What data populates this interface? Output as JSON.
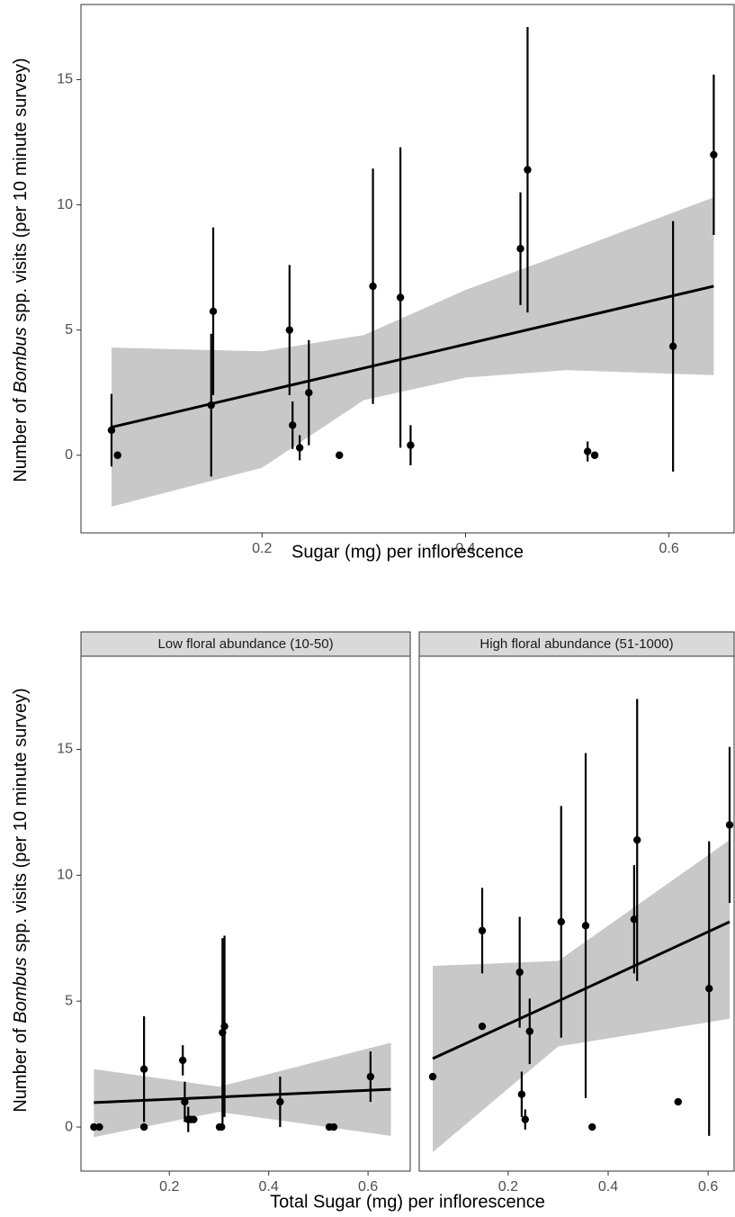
{
  "chart_data": [
    {
      "type": "scatter",
      "x_label": "Sugar (mg) per inflorescence",
      "y_label": [
        "Number of ",
        "Bombus",
        " spp. visits (per 10 minute survey)"
      ],
      "xlim": [
        0.022,
        0.664
      ],
      "ylim": [
        -3.1,
        18.0
      ],
      "xticks": [
        0.2,
        0.4,
        0.6
      ],
      "yticks": [
        0,
        5,
        10,
        15
      ],
      "color": "#000000",
      "band_color": "#c8c8c8",
      "x": [
        0.052,
        0.058,
        0.15,
        0.152,
        0.227,
        0.23,
        0.237,
        0.246,
        0.276,
        0.309,
        0.336,
        0.346,
        0.454,
        0.461,
        0.52,
        0.527,
        0.604,
        0.644
      ],
      "values": [
        1.0,
        0,
        2.0,
        5.75,
        5.0,
        1.2,
        0.3,
        2.5,
        0,
        6.75,
        6.3,
        0.4,
        8.25,
        11.4,
        0.15,
        0,
        4.35,
        12.0
      ],
      "errors": [
        1.45,
        null,
        2.85,
        3.35,
        2.6,
        0.95,
        0.5,
        2.1,
        null,
        4.7,
        6.0,
        0.8,
        2.25,
        5.7,
        0.4,
        null,
        5.0,
        3.2
      ],
      "fit": {
        "x": [
          0.052,
          0.2,
          0.3,
          0.4,
          0.5,
          0.644
        ],
        "values": [
          1.12,
          2.53,
          3.48,
          4.43,
          5.38,
          6.75
        ],
        "lower": [
          -2.05,
          -0.5,
          2.2,
          3.1,
          3.4,
          3.2
        ],
        "upper": [
          4.3,
          4.15,
          4.8,
          6.6,
          8.1,
          10.3
        ]
      }
    },
    {
      "type": "scatter",
      "facet": "Low floral abundance (10-50)",
      "x_label": "Total Sugar (mg) per inflorescence",
      "y_label": [
        "Number of ",
        "Bombus",
        " spp. visits (per 10 minute survey)"
      ],
      "xlim": [
        0.022,
        0.685
      ],
      "ylim": [
        -1.75,
        18.7
      ],
      "xticks": [
        0.2,
        0.4,
        0.6
      ],
      "yticks": [
        0,
        5,
        10,
        15
      ],
      "color": "#000000",
      "band_color": "#c8c8c8",
      "x": [
        0.048,
        0.059,
        0.149,
        0.149,
        0.227,
        0.231,
        0.238,
        0.243,
        0.249,
        0.301,
        0.305,
        0.307,
        0.311,
        0.423,
        0.522,
        0.531,
        0.605
      ],
      "values": [
        0,
        0,
        2.3,
        0,
        2.65,
        1.0,
        0.3,
        0.3,
        0.3,
        0,
        0,
        3.75,
        4.0,
        1.0,
        0,
        0,
        2.0
      ],
      "errors": [
        null,
        null,
        2.1,
        null,
        0.6,
        0.8,
        0.5,
        null,
        null,
        null,
        null,
        3.75,
        3.6,
        1.0,
        null,
        null,
        1.0
      ],
      "fit": {
        "x": [
          0.048,
          0.3,
          0.646
        ],
        "values": [
          0.97,
          1.19,
          1.5
        ],
        "lower": [
          -0.4,
          0.6,
          -0.35
        ],
        "upper": [
          2.3,
          1.6,
          3.35
        ]
      }
    },
    {
      "type": "scatter",
      "facet": "High floral abundance (51-1000)",
      "xlim": [
        0.022,
        0.652
      ],
      "ylim": [
        -1.75,
        18.7
      ],
      "xticks": [
        0.2,
        0.4,
        0.6
      ],
      "color": "#000000",
      "band_color": "#c8c8c8",
      "x": [
        0.049,
        0.148,
        0.148,
        0.223,
        0.227,
        0.234,
        0.243,
        0.306,
        0.355,
        0.368,
        0.452,
        0.458,
        0.54,
        0.602,
        0.643
      ],
      "values": [
        2.0,
        7.8,
        4.0,
        6.15,
        1.3,
        0.3,
        3.8,
        8.15,
        8.0,
        0,
        8.25,
        11.4,
        1.0,
        5.5,
        12.0
      ],
      "errors": [
        null,
        1.7,
        null,
        2.2,
        0.9,
        0.4,
        1.3,
        4.6,
        6.85,
        null,
        2.15,
        5.6,
        null,
        5.85,
        3.1
      ],
      "fit": {
        "x": [
          0.049,
          0.3,
          0.643
        ],
        "values": [
          2.72,
          5.0,
          8.15
        ],
        "lower": [
          -1.0,
          3.2,
          4.3
        ],
        "upper": [
          6.4,
          6.6,
          11.4
        ]
      }
    }
  ]
}
